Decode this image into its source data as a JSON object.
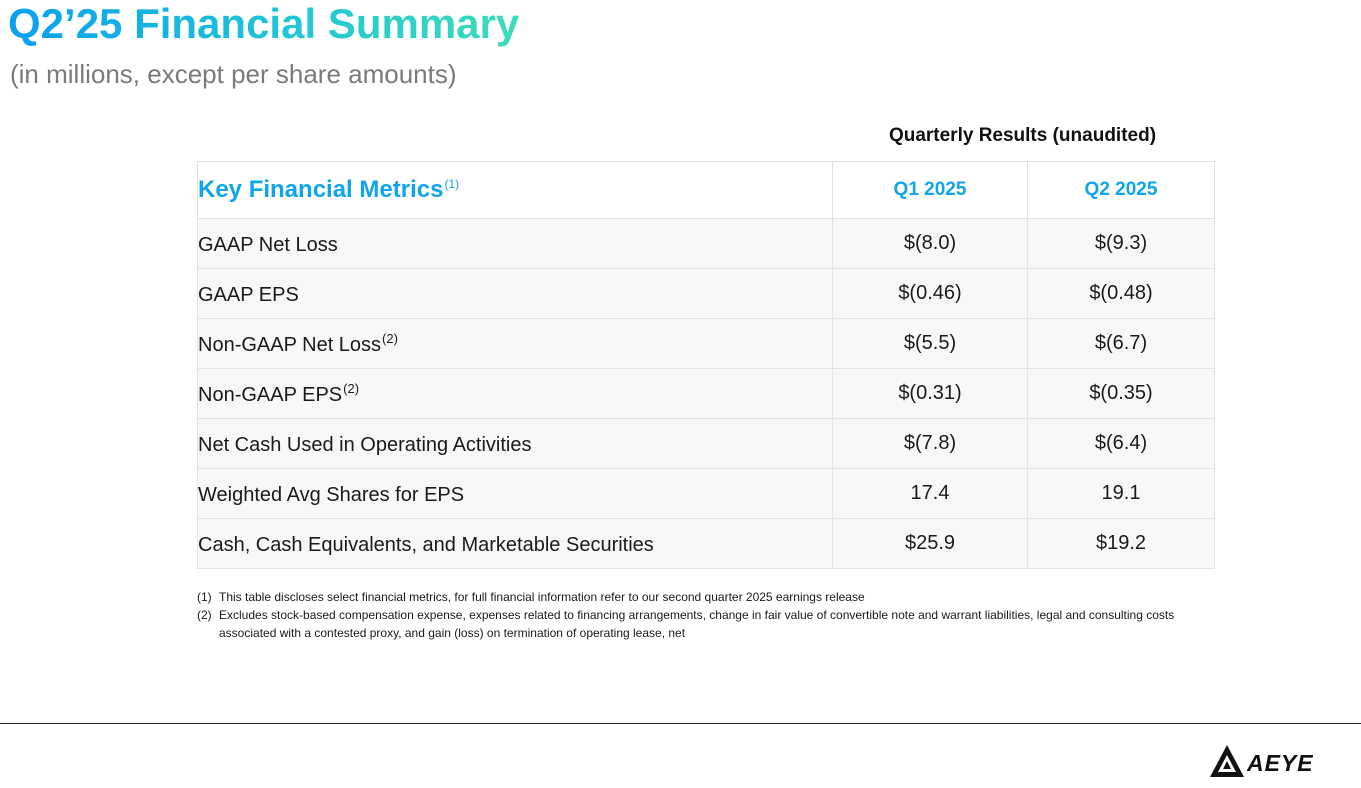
{
  "page": {
    "title": "Q2’25 Financial Summary",
    "subtitle": "(in millions, except per share amounts)"
  },
  "table": {
    "group_heading": "Quarterly Results (unaudited)",
    "header": {
      "metric": "Key Financial Metrics",
      "metric_note": "(1)",
      "q1": "Q1 2025",
      "q2": "Q2 2025"
    },
    "rows": [
      {
        "label": "GAAP Net Loss",
        "note": "",
        "q1": "$(8.0)",
        "q2": "$(9.3)"
      },
      {
        "label": "GAAP EPS",
        "note": "",
        "q1": "$(0.46)",
        "q2": "$(0.48)"
      },
      {
        "label": "Non-GAAP Net Loss",
        "note": "(2)",
        "q1": "$(5.5)",
        "q2": "$(6.7)"
      },
      {
        "label": "Non-GAAP EPS",
        "note": "(2)",
        "q1": "$(0.31)",
        "q2": "$(0.35)"
      },
      {
        "label": "Net Cash Used in Operating Activities",
        "note": "",
        "q1": "$(7.8)",
        "q2": "$(6.4)"
      },
      {
        "label": "Weighted Avg Shares for EPS",
        "note": "",
        "q1": "17.4",
        "q2": "19.1"
      },
      {
        "label": "Cash, Cash Equivalents, and Marketable Securities",
        "note": "",
        "q1": "$25.9",
        "q2": "$19.2"
      }
    ]
  },
  "footnotes": [
    {
      "num": "(1)",
      "text": "This table discloses select financial metrics, for full financial information refer to our second quarter 2025 earnings release"
    },
    {
      "num": "(2)",
      "text": "Excludes stock-based compensation expense, expenses related to financing arrangements, change in fair value of convertible note and warrant liabilities, legal and consulting costs associated with a contested proxy, and gain (loss) on termination of operating lease, net"
    }
  ],
  "logo": {
    "text": "AEYE",
    "icon": "aeye-triangle-logo-icon"
  },
  "colors": {
    "title_start": "#0aa0ef",
    "title_end": "#3cdcb8",
    "header_blue": "#0ea5ec",
    "subtitle_gray": "#7a7a7a",
    "row_bg": "#f7f7f7"
  }
}
